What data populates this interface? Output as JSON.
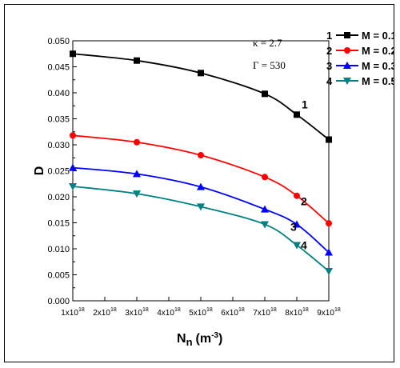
{
  "chart_data": {
    "type": "line",
    "title": "",
    "xlabel": "N",
    "xlabel_sub": "n",
    "xlabel_unit": "(m",
    "xlabel_unit_sup": "-3",
    "xlabel_unit_close": ")",
    "ylabel": "D",
    "x": [
      1e+18,
      3e+18,
      5e+18,
      7e+18,
      8e+18,
      9e+18
    ],
    "xlim": [
      1e+18,
      9e+18
    ],
    "ylim": [
      0.0,
      0.05
    ],
    "x_ticks": [
      {
        "value": 1e+18,
        "mant": "1x10",
        "exp": "18"
      },
      {
        "value": 2e+18,
        "mant": "2x10",
        "exp": "18"
      },
      {
        "value": 3e+18,
        "mant": "3x10",
        "exp": "18"
      },
      {
        "value": 4e+18,
        "mant": "4x10",
        "exp": "18"
      },
      {
        "value": 5e+18,
        "mant": "5x10",
        "exp": "18"
      },
      {
        "value": 6e+18,
        "mant": "6x10",
        "exp": "18"
      },
      {
        "value": 7e+18,
        "mant": "7x10",
        "exp": "18"
      },
      {
        "value": 8e+18,
        "mant": "8x10",
        "exp": "18"
      },
      {
        "value": 9e+18,
        "mant": "9x10",
        "exp": "18"
      }
    ],
    "y_ticks": [
      "0.000",
      "0.005",
      "0.010",
      "0.015",
      "0.020",
      "0.025",
      "0.030",
      "0.035",
      "0.040",
      "0.045",
      "0.050"
    ],
    "grid": false,
    "legend_position": "top-right",
    "series": [
      {
        "id": "1",
        "name": "M = 0.1",
        "color": "#000000",
        "marker": "square",
        "values": [
          0.0475,
          0.0462,
          0.0438,
          0.0398,
          0.0358,
          0.031
        ],
        "curve_label": "1"
      },
      {
        "id": "2",
        "name": "M = 0.2",
        "color": "#ff0000",
        "marker": "circle",
        "values": [
          0.0318,
          0.0305,
          0.028,
          0.0238,
          0.0202,
          0.0149
        ],
        "curve_label": "2"
      },
      {
        "id": "3",
        "name": "M = 0.3",
        "color": "#0000ff",
        "marker": "triangle-up",
        "values": [
          0.0256,
          0.0244,
          0.0219,
          0.0176,
          0.0147,
          0.0093
        ],
        "curve_label": "3"
      },
      {
        "id": "4",
        "name": "M = 0.5",
        "color": "#008080",
        "marker": "triangle-down",
        "values": [
          0.022,
          0.0206,
          0.0181,
          0.0147,
          0.0107,
          0.0057
        ],
        "curve_label": "4"
      }
    ],
    "annotations": {
      "kappa": "κ = 2.7",
      "gamma": "Γ = 530"
    }
  }
}
